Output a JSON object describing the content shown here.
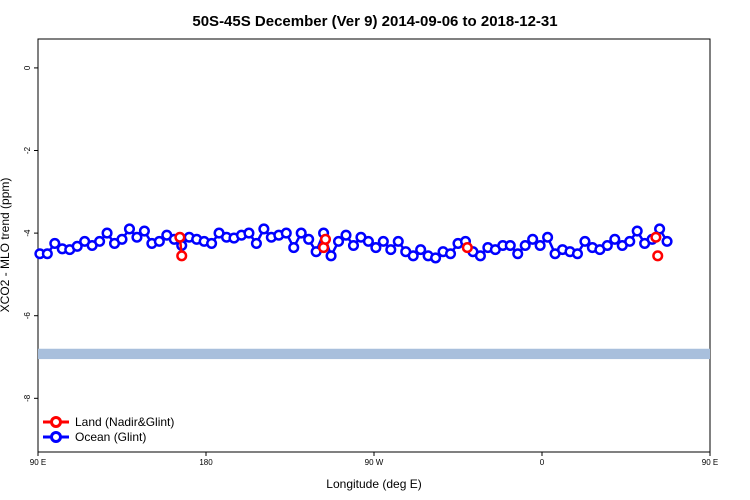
{
  "chart_data": {
    "type": "line",
    "title": "50S-45S December (Ver 9)   2014-09-06 to 2018-12-31",
    "xlabel": "Longitude (deg E)",
    "ylabel": "XCO2 - MLO trend (ppm)",
    "xlim": [
      90,
      450
    ],
    "ylim": [
      -9.3,
      0.7
    ],
    "x_ticks": [
      {
        "value": 90,
        "label": "90 E"
      },
      {
        "value": 180,
        "label": "180"
      },
      {
        "value": 270,
        "label": "90 W"
      },
      {
        "value": 360,
        "label": "0"
      },
      {
        "value": 450,
        "label": "90 E"
      },
      {
        "value": 540,
        "label": "180"
      }
    ],
    "y_ticks": [
      0,
      -2,
      -4,
      -6,
      -8
    ],
    "grid": false,
    "legend_position": "bottom-left",
    "land_band": {
      "y_range": [
        -7.05,
        -6.8
      ],
      "color": "#a8bfdc"
    },
    "series": [
      {
        "name": "Land (Nadir&Glint)",
        "color": "#ff0000",
        "x": [
          166,
          167,
          243,
          244,
          320,
          421,
          422
        ],
        "y": [
          -4.1,
          -4.55,
          -4.35,
          -4.15,
          -4.35,
          -4.1,
          -4.55
        ]
      },
      {
        "name": "Ocean (Glint)",
        "color": "#0000ff",
        "x": [
          91,
          95,
          99,
          103,
          107,
          111,
          115,
          119,
          123,
          127,
          131,
          135,
          139,
          143,
          147,
          151,
          155,
          159,
          163,
          167,
          171,
          175,
          179,
          183,
          187,
          191,
          195,
          199,
          203,
          207,
          211,
          215,
          219,
          223,
          227,
          231,
          235,
          239,
          243,
          247,
          251,
          255,
          259,
          263,
          267,
          271,
          275,
          279,
          283,
          287,
          291,
          295,
          299,
          303,
          307,
          311,
          315,
          319,
          323,
          327,
          331,
          335,
          339,
          343,
          347,
          351,
          355,
          359,
          363,
          367,
          371,
          375,
          379,
          383,
          387,
          391,
          395,
          399,
          403,
          407,
          411,
          415,
          419,
          423,
          427
        ],
        "y": [
          -4.5,
          -4.5,
          -4.25,
          -4.38,
          -4.4,
          -4.32,
          -4.2,
          -4.3,
          -4.2,
          -4.0,
          -4.25,
          -4.15,
          -3.9,
          -4.1,
          -3.95,
          -4.25,
          -4.2,
          -4.05,
          -4.15,
          -4.3,
          -4.1,
          -4.15,
          -4.2,
          -4.25,
          -4.0,
          -4.1,
          -4.12,
          -4.05,
          -4.0,
          -4.25,
          -3.9,
          -4.1,
          -4.05,
          -4.0,
          -4.35,
          -4.0,
          -4.15,
          -4.45,
          -4.0,
          -4.55,
          -4.2,
          -4.05,
          -4.3,
          -4.1,
          -4.2,
          -4.35,
          -4.2,
          -4.4,
          -4.2,
          -4.45,
          -4.55,
          -4.4,
          -4.55,
          -4.6,
          -4.45,
          -4.5,
          -4.25,
          -4.2,
          -4.45,
          -4.55,
          -4.35,
          -4.4,
          -4.3,
          -4.3,
          -4.5,
          -4.3,
          -4.15,
          -4.3,
          -4.1,
          -4.5,
          -4.4,
          -4.45,
          -4.5,
          -4.2,
          -4.35,
          -4.4,
          -4.3,
          -4.15,
          -4.3,
          -4.2,
          -3.95,
          -4.25,
          -4.15,
          -3.9,
          -4.2
        ]
      }
    ]
  }
}
